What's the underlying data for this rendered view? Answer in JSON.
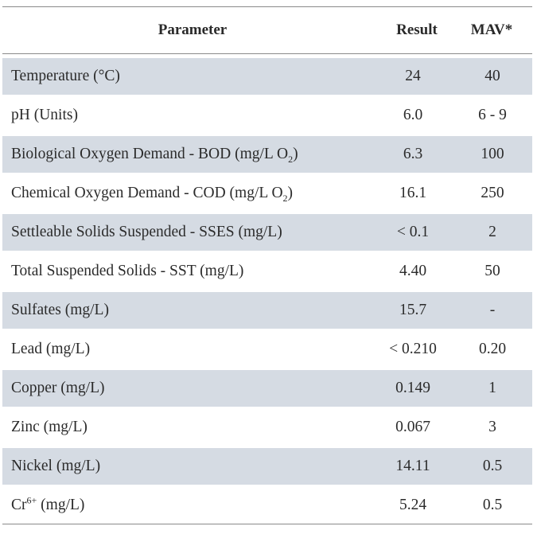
{
  "table": {
    "headers": {
      "parameter": "Parameter",
      "result": "Result",
      "mav": "MAV*"
    },
    "rows": [
      {
        "pre": "Temperature (°C)",
        "sub": "",
        "sup": "",
        "post": "",
        "result": "24",
        "mav": "40"
      },
      {
        "pre": "pH (Units)",
        "sub": "",
        "sup": "",
        "post": "",
        "result": "6.0",
        "mav": "6 - 9"
      },
      {
        "pre": "Biological Oxygen Demand - BOD (mg/L O",
        "sub": "2",
        "sup": "",
        "post": ")",
        "result": "6.3",
        "mav": "100"
      },
      {
        "pre": "Chemical Oxygen Demand - COD (mg/L O",
        "sub": "2",
        "sup": "",
        "post": ")",
        "result": "16.1",
        "mav": "250"
      },
      {
        "pre": "Settleable Solids Suspended - SSES (mg/L)",
        "sub": "",
        "sup": "",
        "post": "",
        "result": "< 0.1",
        "mav": "2"
      },
      {
        "pre": "Total Suspended Solids - SST (mg/L)",
        "sub": "",
        "sup": "",
        "post": "",
        "result": "4.40",
        "mav": "50"
      },
      {
        "pre": "Sulfates (mg/L)",
        "sub": "",
        "sup": "",
        "post": "",
        "result": "15.7",
        "mav": "-"
      },
      {
        "pre": "Lead (mg/L)",
        "sub": "",
        "sup": "",
        "post": "",
        "result": "< 0.210",
        "mav": "0.20"
      },
      {
        "pre": "Copper (mg/L)",
        "sub": "",
        "sup": "",
        "post": "",
        "result": "0.149",
        "mav": "1"
      },
      {
        "pre": "Zinc (mg/L)",
        "sub": "",
        "sup": "",
        "post": "",
        "result": "0.067",
        "mav": "3"
      },
      {
        "pre": "Nickel (mg/L)",
        "sub": "",
        "sup": "",
        "post": "",
        "result": "14.11",
        "mav": "0.5"
      },
      {
        "pre": "Cr",
        "sub": "",
        "sup": "6+",
        "post": " (mg/L)",
        "result": "5.24",
        "mav": "0.5"
      }
    ]
  }
}
